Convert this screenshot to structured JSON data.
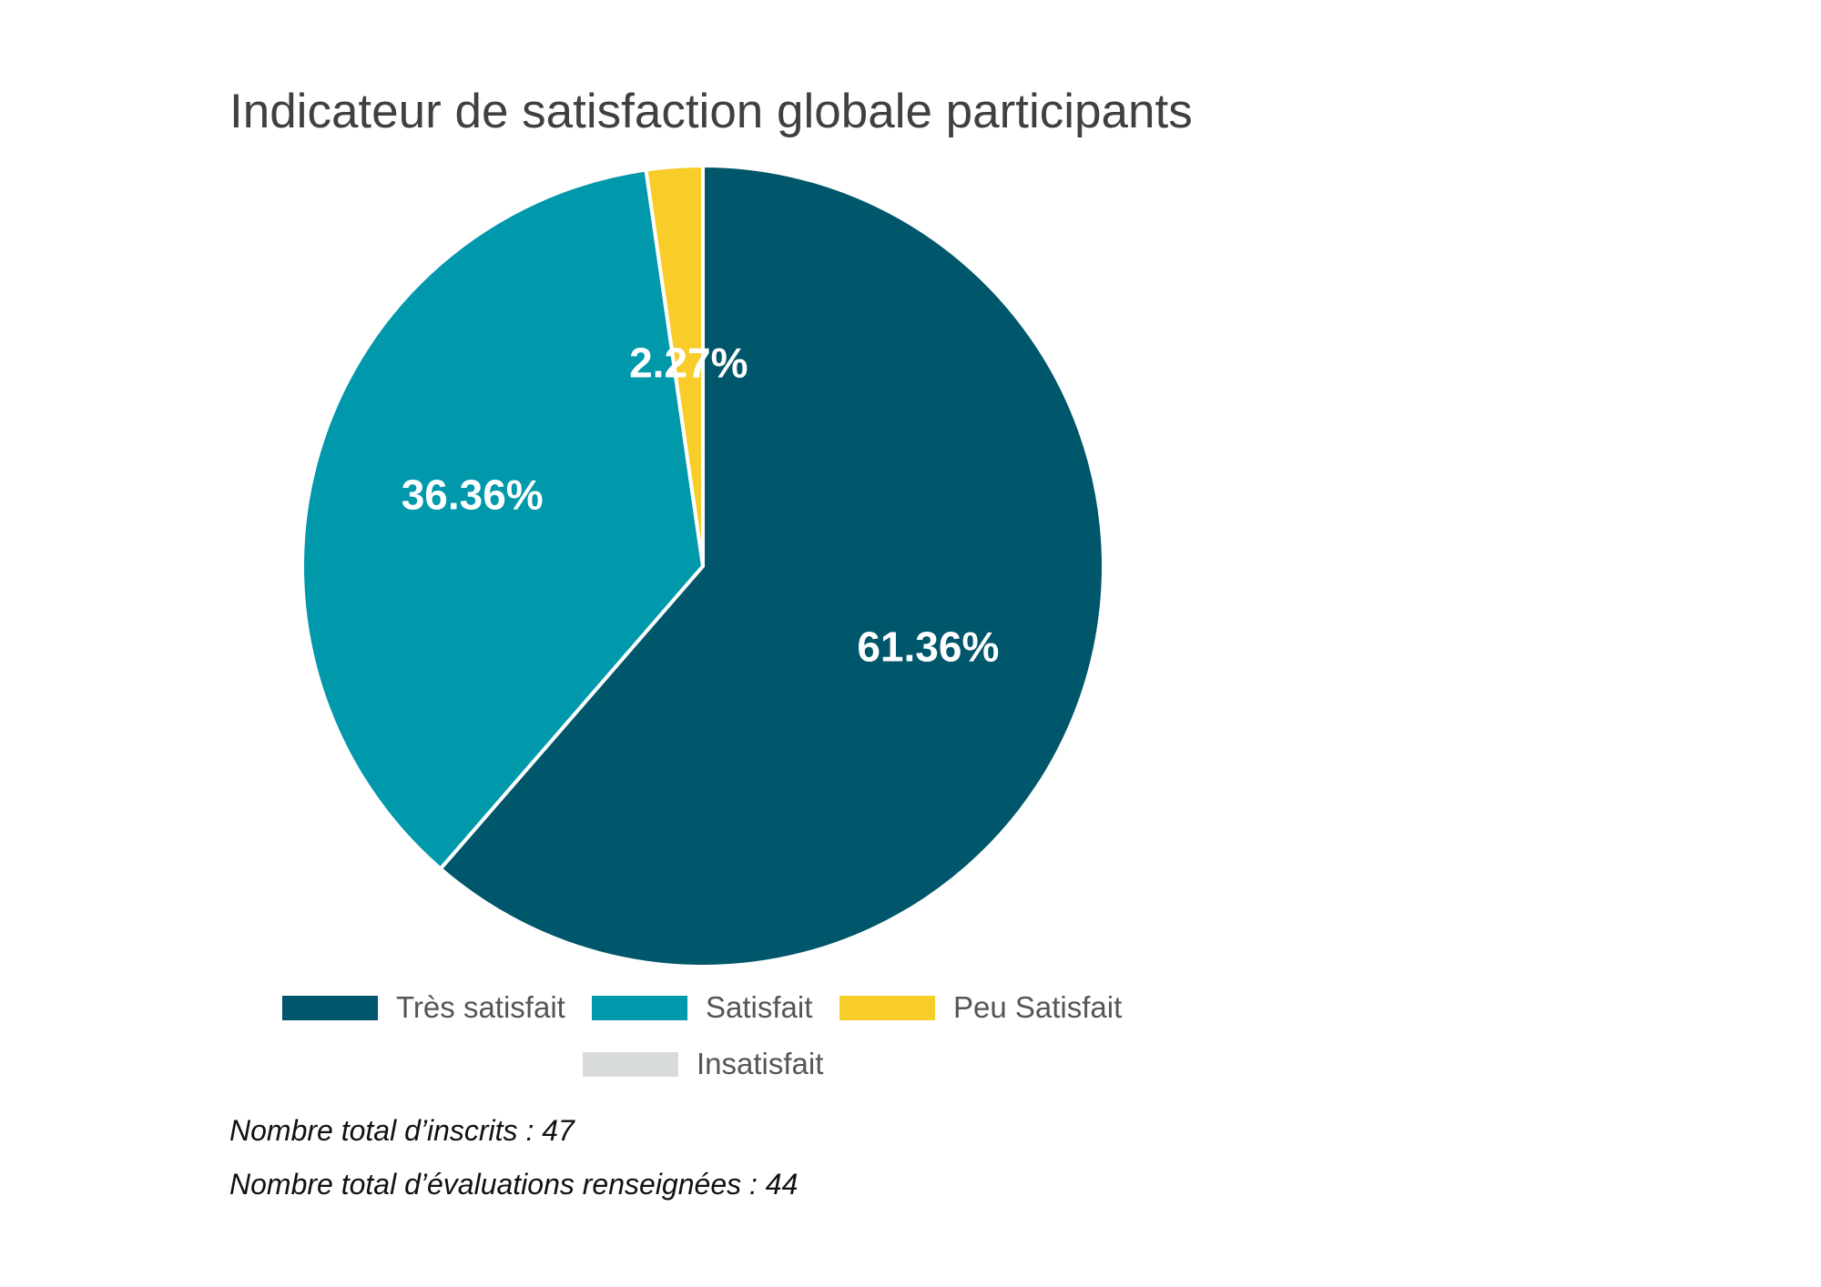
{
  "chart_data": {
    "type": "pie",
    "title": "Indicateur de satisfaction globale participants",
    "categories": [
      "Très satisfait",
      "Satisfait",
      "Peu Satisfait",
      "Insatisfait"
    ],
    "values": [
      61.36,
      36.36,
      2.27,
      0
    ],
    "value_labels": [
      "61.36%",
      "36.36%",
      "2.27%",
      ""
    ],
    "colors": [
      "#00566a",
      "#0098ab",
      "#f8cd2a",
      "#d8dbdc"
    ],
    "legend_position": "bottom"
  },
  "footnotes": {
    "inscrits": "Nombre total d’inscrits :  47",
    "evaluations": "Nombre total d’évaluations renseignées :  44"
  }
}
